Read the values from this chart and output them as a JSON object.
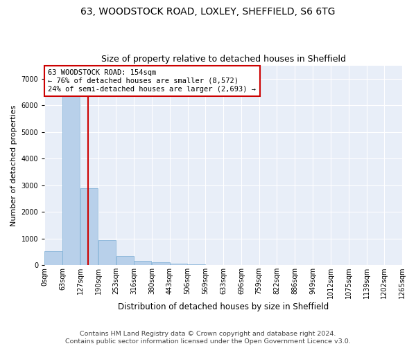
{
  "title1": "63, WOODSTOCK ROAD, LOXLEY, SHEFFIELD, S6 6TG",
  "title2": "Size of property relative to detached houses in Sheffield",
  "xlabel": "Distribution of detached houses by size in Sheffield",
  "ylabel": "Number of detached properties",
  "footer1": "Contains HM Land Registry data © Crown copyright and database right 2024.",
  "footer2": "Contains public sector information licensed under the Open Government Licence v3.0.",
  "annotation_line1": "63 WOODSTOCK ROAD: 154sqm",
  "annotation_line2": "← 76% of detached houses are smaller (8,572)",
  "annotation_line3": "24% of semi-detached houses are larger (2,693) →",
  "bar_color": "#b8d0ea",
  "bar_edge_color": "#7aadd4",
  "red_line_color": "#cc0000",
  "annotation_box_color": "#cc0000",
  "background_color": "#e8eef8",
  "grid_color": "#ffffff",
  "bin_edges": [
    0,
    63,
    127,
    190,
    253,
    316,
    380,
    443,
    506,
    569,
    633,
    696,
    759,
    822,
    886,
    949,
    1012,
    1075,
    1139,
    1202,
    1265
  ],
  "bin_labels": [
    "0sqm",
    "63sqm",
    "127sqm",
    "190sqm",
    "253sqm",
    "316sqm",
    "380sqm",
    "443sqm",
    "506sqm",
    "569sqm",
    "633sqm",
    "696sqm",
    "759sqm",
    "822sqm",
    "886sqm",
    "949sqm",
    "1012sqm",
    "1075sqm",
    "1139sqm",
    "1202sqm",
    "1265sqm"
  ],
  "bar_heights": [
    520,
    6420,
    2900,
    950,
    330,
    150,
    100,
    60,
    30,
    10,
    5,
    3,
    2,
    1,
    1,
    0,
    0,
    0,
    0,
    0
  ],
  "property_size": 154,
  "ylim": [
    0,
    7500
  ],
  "yticks": [
    0,
    1000,
    2000,
    3000,
    4000,
    5000,
    6000,
    7000
  ],
  "title1_fontsize": 10,
  "title2_fontsize": 9,
  "annotation_fontsize": 7.5,
  "ylabel_fontsize": 8,
  "xlabel_fontsize": 8.5,
  "footer_fontsize": 6.8,
  "tick_fontsize": 7
}
